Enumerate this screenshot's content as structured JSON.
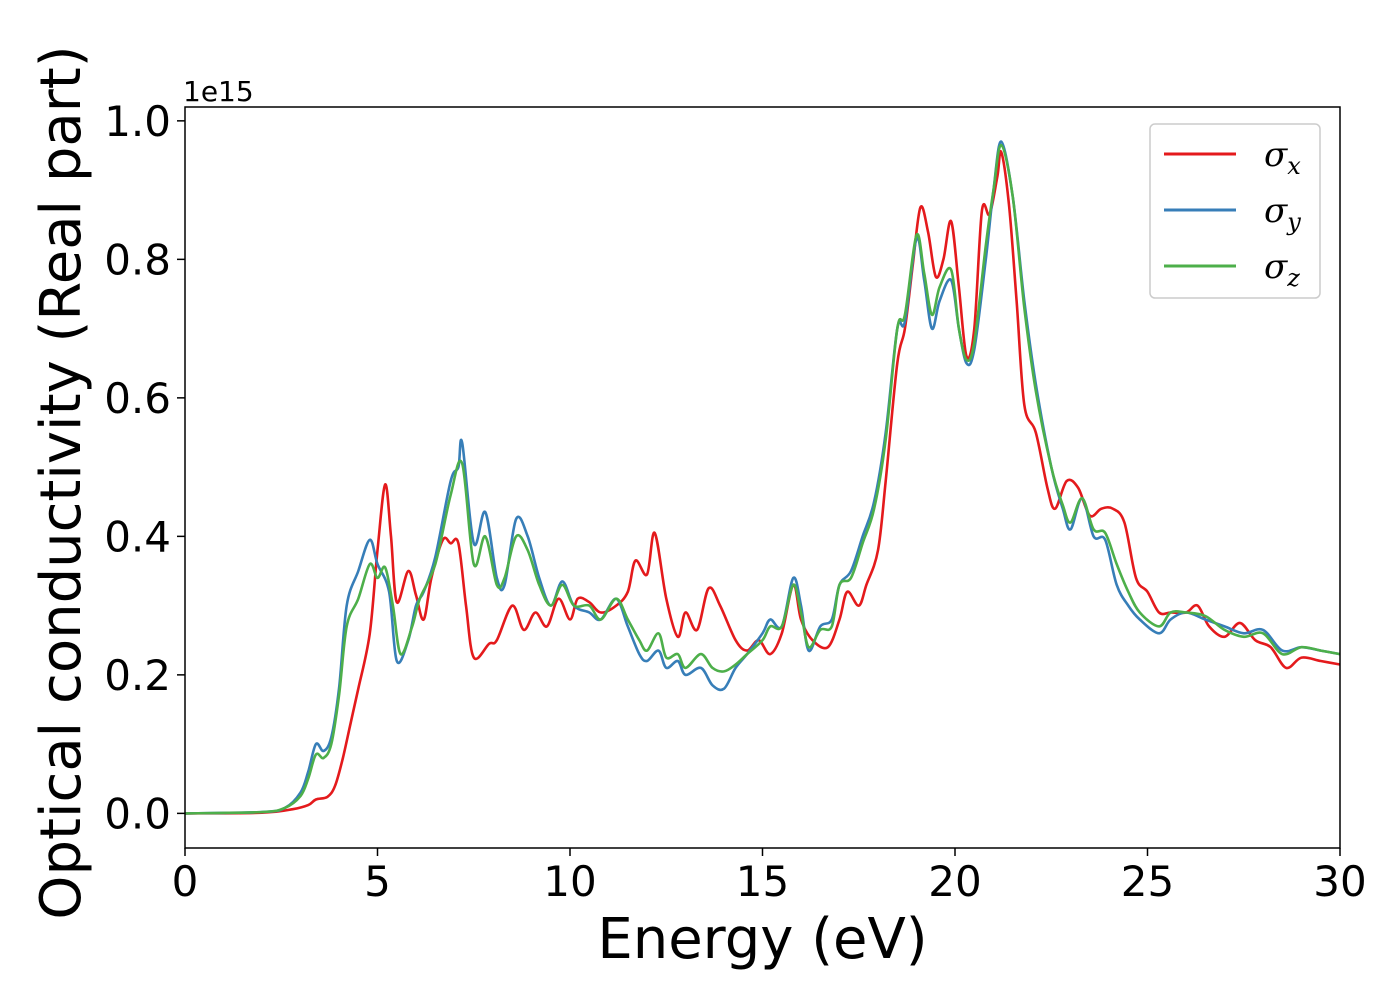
{
  "chart_data": {
    "type": "line",
    "title": "",
    "xlabel": "Energy (eV)",
    "ylabel": "Optical conductivity (Real part)",
    "y_offset_label": "1e15",
    "xlim": [
      0,
      30
    ],
    "ylim": [
      -0.05,
      1.02
    ],
    "xticks": [
      0,
      5,
      10,
      15,
      20,
      25,
      30
    ],
    "xtick_labels": [
      "0",
      "5",
      "10",
      "15",
      "20",
      "25",
      "30"
    ],
    "yticks": [
      0.0,
      0.2,
      0.4,
      0.6,
      0.8,
      1.0
    ],
    "ytick_labels": [
      "0.0",
      "0.2",
      "0.4",
      "0.6",
      "0.8",
      "1.0"
    ],
    "grid": false,
    "legend_position": "top-right",
    "series": [
      {
        "name": "σx",
        "legend_base": "σ",
        "legend_sub": "x",
        "color": "#e41a1c",
        "points": [
          [
            0,
            0
          ],
          [
            2,
            0.001
          ],
          [
            2.8,
            0.006
          ],
          [
            3.2,
            0.012
          ],
          [
            3.4,
            0.02
          ],
          [
            3.7,
            0.024
          ],
          [
            3.9,
            0.04
          ],
          [
            4.1,
            0.08
          ],
          [
            4.3,
            0.13
          ],
          [
            4.5,
            0.18
          ],
          [
            4.8,
            0.26
          ],
          [
            5.0,
            0.38
          ],
          [
            5.2,
            0.475
          ],
          [
            5.35,
            0.4
          ],
          [
            5.5,
            0.305
          ],
          [
            5.8,
            0.35
          ],
          [
            6.0,
            0.315
          ],
          [
            6.2,
            0.28
          ],
          [
            6.4,
            0.34
          ],
          [
            6.7,
            0.395
          ],
          [
            6.9,
            0.39
          ],
          [
            7.1,
            0.39
          ],
          [
            7.3,
            0.3
          ],
          [
            7.5,
            0.225
          ],
          [
            7.9,
            0.245
          ],
          [
            8.1,
            0.25
          ],
          [
            8.5,
            0.3
          ],
          [
            8.8,
            0.265
          ],
          [
            9.1,
            0.29
          ],
          [
            9.4,
            0.27
          ],
          [
            9.7,
            0.31
          ],
          [
            10.0,
            0.28
          ],
          [
            10.2,
            0.31
          ],
          [
            10.5,
            0.305
          ],
          [
            10.8,
            0.29
          ],
          [
            11.2,
            0.3
          ],
          [
            11.5,
            0.32
          ],
          [
            11.7,
            0.365
          ],
          [
            12.0,
            0.345
          ],
          [
            12.2,
            0.405
          ],
          [
            12.5,
            0.31
          ],
          [
            12.8,
            0.255
          ],
          [
            13.0,
            0.29
          ],
          [
            13.3,
            0.265
          ],
          [
            13.6,
            0.325
          ],
          [
            13.9,
            0.3
          ],
          [
            14.3,
            0.25
          ],
          [
            14.6,
            0.235
          ],
          [
            14.9,
            0.25
          ],
          [
            15.2,
            0.23
          ],
          [
            15.5,
            0.26
          ],
          [
            15.8,
            0.33
          ],
          [
            16.0,
            0.28
          ],
          [
            16.3,
            0.25
          ],
          [
            16.7,
            0.24
          ],
          [
            17.0,
            0.28
          ],
          [
            17.2,
            0.32
          ],
          [
            17.5,
            0.3
          ],
          [
            17.7,
            0.33
          ],
          [
            18.0,
            0.38
          ],
          [
            18.2,
            0.48
          ],
          [
            18.5,
            0.65
          ],
          [
            18.7,
            0.7
          ],
          [
            18.9,
            0.79
          ],
          [
            19.1,
            0.875
          ],
          [
            19.3,
            0.84
          ],
          [
            19.5,
            0.775
          ],
          [
            19.7,
            0.8
          ],
          [
            19.9,
            0.855
          ],
          [
            20.1,
            0.76
          ],
          [
            20.3,
            0.66
          ],
          [
            20.5,
            0.7
          ],
          [
            20.7,
            0.87
          ],
          [
            20.9,
            0.865
          ],
          [
            21.1,
            0.92
          ],
          [
            21.2,
            0.955
          ],
          [
            21.4,
            0.88
          ],
          [
            21.6,
            0.74
          ],
          [
            21.8,
            0.59
          ],
          [
            22.1,
            0.55
          ],
          [
            22.4,
            0.47
          ],
          [
            22.6,
            0.44
          ],
          [
            22.9,
            0.48
          ],
          [
            23.2,
            0.47
          ],
          [
            23.5,
            0.43
          ],
          [
            23.8,
            0.44
          ],
          [
            24.1,
            0.44
          ],
          [
            24.4,
            0.42
          ],
          [
            24.7,
            0.34
          ],
          [
            25.0,
            0.32
          ],
          [
            25.3,
            0.29
          ],
          [
            25.6,
            0.29
          ],
          [
            26.0,
            0.29
          ],
          [
            26.3,
            0.3
          ],
          [
            26.6,
            0.27
          ],
          [
            27.0,
            0.255
          ],
          [
            27.4,
            0.275
          ],
          [
            27.8,
            0.25
          ],
          [
            28.2,
            0.24
          ],
          [
            28.6,
            0.21
          ],
          [
            29.0,
            0.225
          ],
          [
            29.5,
            0.22
          ],
          [
            30,
            0.215
          ]
        ]
      },
      {
        "name": "σy",
        "legend_base": "σ",
        "legend_sub": "y",
        "color": "#377eb8",
        "points": [
          [
            0,
            0
          ],
          [
            2,
            0.002
          ],
          [
            2.6,
            0.008
          ],
          [
            3.0,
            0.03
          ],
          [
            3.2,
            0.06
          ],
          [
            3.4,
            0.1
          ],
          [
            3.6,
            0.09
          ],
          [
            3.8,
            0.11
          ],
          [
            4.0,
            0.18
          ],
          [
            4.2,
            0.3
          ],
          [
            4.5,
            0.35
          ],
          [
            4.8,
            0.395
          ],
          [
            5.0,
            0.36
          ],
          [
            5.3,
            0.32
          ],
          [
            5.5,
            0.22
          ],
          [
            5.8,
            0.25
          ],
          [
            6.0,
            0.3
          ],
          [
            6.2,
            0.32
          ],
          [
            6.5,
            0.37
          ],
          [
            6.9,
            0.48
          ],
          [
            7.1,
            0.5
          ],
          [
            7.2,
            0.535
          ],
          [
            7.5,
            0.39
          ],
          [
            7.8,
            0.435
          ],
          [
            8.1,
            0.34
          ],
          [
            8.3,
            0.33
          ],
          [
            8.6,
            0.425
          ],
          [
            8.9,
            0.4
          ],
          [
            9.2,
            0.34
          ],
          [
            9.5,
            0.3
          ],
          [
            9.8,
            0.335
          ],
          [
            10.1,
            0.3
          ],
          [
            10.5,
            0.29
          ],
          [
            10.8,
            0.28
          ],
          [
            11.2,
            0.31
          ],
          [
            11.5,
            0.27
          ],
          [
            11.8,
            0.23
          ],
          [
            12.0,
            0.22
          ],
          [
            12.3,
            0.235
          ],
          [
            12.5,
            0.21
          ],
          [
            12.8,
            0.22
          ],
          [
            13.0,
            0.2
          ],
          [
            13.4,
            0.21
          ],
          [
            13.7,
            0.185
          ],
          [
            14.0,
            0.18
          ],
          [
            14.3,
            0.21
          ],
          [
            14.6,
            0.23
          ],
          [
            15.0,
            0.26
          ],
          [
            15.2,
            0.28
          ],
          [
            15.5,
            0.27
          ],
          [
            15.8,
            0.34
          ],
          [
            16.0,
            0.3
          ],
          [
            16.2,
            0.235
          ],
          [
            16.5,
            0.27
          ],
          [
            16.8,
            0.28
          ],
          [
            17.0,
            0.33
          ],
          [
            17.3,
            0.35
          ],
          [
            17.6,
            0.4
          ],
          [
            17.9,
            0.45
          ],
          [
            18.2,
            0.55
          ],
          [
            18.5,
            0.7
          ],
          [
            18.7,
            0.71
          ],
          [
            19.0,
            0.83
          ],
          [
            19.2,
            0.77
          ],
          [
            19.4,
            0.7
          ],
          [
            19.6,
            0.74
          ],
          [
            19.9,
            0.77
          ],
          [
            20.1,
            0.7
          ],
          [
            20.3,
            0.65
          ],
          [
            20.5,
            0.67
          ],
          [
            20.8,
            0.8
          ],
          [
            21.0,
            0.9
          ],
          [
            21.2,
            0.97
          ],
          [
            21.5,
            0.89
          ],
          [
            21.8,
            0.74
          ],
          [
            22.1,
            0.62
          ],
          [
            22.5,
            0.5
          ],
          [
            22.8,
            0.44
          ],
          [
            23.0,
            0.41
          ],
          [
            23.3,
            0.455
          ],
          [
            23.6,
            0.4
          ],
          [
            23.9,
            0.395
          ],
          [
            24.2,
            0.33
          ],
          [
            24.5,
            0.3
          ],
          [
            24.8,
            0.28
          ],
          [
            25.3,
            0.26
          ],
          [
            25.6,
            0.28
          ],
          [
            26.0,
            0.29
          ],
          [
            26.5,
            0.28
          ],
          [
            27.0,
            0.27
          ],
          [
            27.5,
            0.26
          ],
          [
            28.0,
            0.265
          ],
          [
            28.5,
            0.235
          ],
          [
            29.0,
            0.24
          ],
          [
            29.5,
            0.235
          ],
          [
            30,
            0.23
          ]
        ]
      },
      {
        "name": "σz",
        "legend_base": "σ",
        "legend_sub": "z",
        "color": "#4daf4a",
        "points": [
          [
            0,
            0
          ],
          [
            2,
            0.002
          ],
          [
            2.6,
            0.008
          ],
          [
            3.0,
            0.025
          ],
          [
            3.2,
            0.05
          ],
          [
            3.4,
            0.085
          ],
          [
            3.6,
            0.08
          ],
          [
            3.8,
            0.1
          ],
          [
            4.0,
            0.17
          ],
          [
            4.2,
            0.27
          ],
          [
            4.5,
            0.31
          ],
          [
            4.8,
            0.36
          ],
          [
            5.0,
            0.34
          ],
          [
            5.2,
            0.355
          ],
          [
            5.4,
            0.3
          ],
          [
            5.6,
            0.23
          ],
          [
            5.9,
            0.27
          ],
          [
            6.1,
            0.31
          ],
          [
            6.5,
            0.36
          ],
          [
            6.9,
            0.46
          ],
          [
            7.2,
            0.505
          ],
          [
            7.5,
            0.36
          ],
          [
            7.8,
            0.4
          ],
          [
            8.1,
            0.33
          ],
          [
            8.3,
            0.34
          ],
          [
            8.6,
            0.4
          ],
          [
            8.9,
            0.38
          ],
          [
            9.2,
            0.33
          ],
          [
            9.5,
            0.3
          ],
          [
            9.8,
            0.33
          ],
          [
            10.1,
            0.3
          ],
          [
            10.5,
            0.3
          ],
          [
            10.8,
            0.28
          ],
          [
            11.2,
            0.31
          ],
          [
            11.5,
            0.28
          ],
          [
            11.8,
            0.25
          ],
          [
            12.0,
            0.235
          ],
          [
            12.3,
            0.26
          ],
          [
            12.5,
            0.225
          ],
          [
            12.8,
            0.23
          ],
          [
            13.0,
            0.21
          ],
          [
            13.4,
            0.23
          ],
          [
            13.7,
            0.21
          ],
          [
            14.0,
            0.205
          ],
          [
            14.3,
            0.215
          ],
          [
            14.6,
            0.23
          ],
          [
            15.0,
            0.25
          ],
          [
            15.2,
            0.27
          ],
          [
            15.5,
            0.27
          ],
          [
            15.8,
            0.33
          ],
          [
            16.0,
            0.29
          ],
          [
            16.2,
            0.24
          ],
          [
            16.5,
            0.265
          ],
          [
            16.8,
            0.27
          ],
          [
            17.0,
            0.33
          ],
          [
            17.3,
            0.34
          ],
          [
            17.6,
            0.39
          ],
          [
            17.9,
            0.44
          ],
          [
            18.2,
            0.54
          ],
          [
            18.5,
            0.7
          ],
          [
            18.7,
            0.72
          ],
          [
            19.0,
            0.835
          ],
          [
            19.2,
            0.78
          ],
          [
            19.4,
            0.72
          ],
          [
            19.6,
            0.76
          ],
          [
            19.9,
            0.785
          ],
          [
            20.1,
            0.7
          ],
          [
            20.3,
            0.655
          ],
          [
            20.5,
            0.68
          ],
          [
            20.8,
            0.82
          ],
          [
            21.0,
            0.9
          ],
          [
            21.2,
            0.965
          ],
          [
            21.5,
            0.89
          ],
          [
            21.8,
            0.73
          ],
          [
            22.1,
            0.61
          ],
          [
            22.5,
            0.5
          ],
          [
            22.8,
            0.445
          ],
          [
            23.0,
            0.42
          ],
          [
            23.3,
            0.455
          ],
          [
            23.6,
            0.41
          ],
          [
            23.9,
            0.405
          ],
          [
            24.2,
            0.36
          ],
          [
            24.5,
            0.32
          ],
          [
            24.8,
            0.29
          ],
          [
            25.3,
            0.27
          ],
          [
            25.6,
            0.29
          ],
          [
            26.0,
            0.29
          ],
          [
            26.5,
            0.285
          ],
          [
            27.0,
            0.265
          ],
          [
            27.5,
            0.255
          ],
          [
            28.0,
            0.26
          ],
          [
            28.5,
            0.23
          ],
          [
            29.0,
            0.24
          ],
          [
            29.5,
            0.235
          ],
          [
            30,
            0.23
          ]
        ]
      }
    ]
  }
}
